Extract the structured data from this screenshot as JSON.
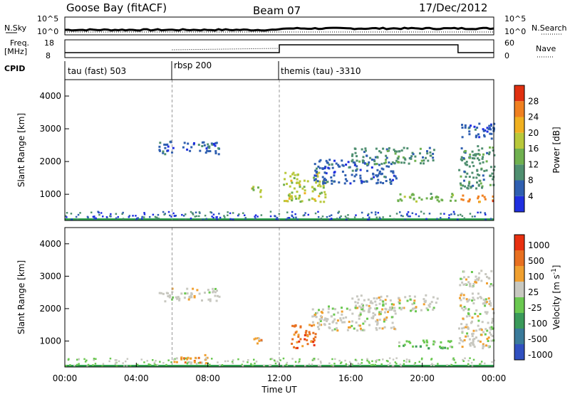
{
  "header": {
    "station": "Goose Bay (fitACF)",
    "beam": "Beam 07",
    "date": "17/Dec/2012"
  },
  "noise_panel": {
    "left_label": "N.Sky",
    "left_ticks": [
      "10^5",
      "10^0"
    ],
    "right_label": "N.Search",
    "right_ticks": [
      "10^5",
      "10^0"
    ]
  },
  "freq_panel": {
    "left_label_top": "Freq.",
    "left_label_unit": "[MHz]",
    "left_ticks": [
      "18",
      "8"
    ],
    "right_label": "Nave",
    "right_ticks": [
      "60",
      "0"
    ]
  },
  "cpid": {
    "label": "CPID",
    "segments": [
      {
        "start": 0,
        "name": "tau (fast) 503"
      },
      {
        "start": 6,
        "name": "rbsp 200"
      },
      {
        "start": 12,
        "name": "themis (tau) -3310"
      }
    ]
  },
  "colors": {
    "power": [
      "#1f2fe0",
      "#2f5fb0",
      "#4f8f70",
      "#6fb04f",
      "#b8c83a",
      "#f0b020",
      "#f08020",
      "#e03010"
    ],
    "velocity": [
      "#3050c0",
      "#3a7a9a",
      "#3a9a5a",
      "#6ac850",
      "#c8c8c0",
      "#f0a030",
      "#e87020",
      "#e83010"
    ],
    "velocity_mid": "#c0c0b8",
    "ground_line": "#30a050"
  },
  "chart_data": [
    {
      "type": "heatmap",
      "title": "Power",
      "xlabel": "Time UT",
      "ylabel": "Slant Range [km]",
      "xlim": [
        0,
        24
      ],
      "ylim": [
        200,
        4500
      ],
      "x_ticks": [
        "00:00",
        "04:00",
        "08:00",
        "12:00",
        "16:00",
        "20:00",
        "00:00"
      ],
      "y_ticks": [
        1000,
        2000,
        3000,
        4000
      ],
      "colorbar": {
        "label": "Power [dB]",
        "ticks": [
          "4",
          "8",
          "12",
          "16",
          "20",
          "24",
          "28"
        ]
      },
      "regions": [
        {
          "t0": 5.2,
          "t1": 8.6,
          "r0": 2250,
          "r1": 2650,
          "level": 1
        },
        {
          "t0": 12.2,
          "t1": 14.6,
          "r0": 800,
          "r1": 1700,
          "level": 4
        },
        {
          "t0": 13.8,
          "t1": 18.5,
          "r0": 1350,
          "r1": 2100,
          "level": 1
        },
        {
          "t0": 16.0,
          "t1": 20.8,
          "r0": 1950,
          "r1": 2450,
          "level": 2
        },
        {
          "t0": 18.5,
          "t1": 21.8,
          "r0": 800,
          "r1": 1050,
          "level": 3
        },
        {
          "t0": 22.0,
          "t1": 24.0,
          "r0": 800,
          "r1": 1000,
          "level": 6
        },
        {
          "t0": 22.0,
          "t1": 24.0,
          "r0": 1200,
          "r1": 2500,
          "level": 2
        },
        {
          "t0": 22.0,
          "t1": 24.0,
          "r0": 2700,
          "r1": 3200,
          "level": 1
        },
        {
          "t0": 10.4,
          "t1": 11.0,
          "r0": 950,
          "r1": 1300,
          "level": 4
        }
      ]
    },
    {
      "type": "heatmap",
      "title": "Velocity",
      "xlabel": "Time UT",
      "ylabel": "Slant Range [km]",
      "xlim": [
        0,
        24
      ],
      "ylim": [
        200,
        4500
      ],
      "x_ticks": [
        "00:00",
        "04:00",
        "08:00",
        "12:00",
        "16:00",
        "20:00",
        "00:00"
      ],
      "y_ticks": [
        1000,
        2000,
        3000,
        4000
      ],
      "colorbar": {
        "label": "Velocity [m s^-1]",
        "ticks": [
          "1000",
          "500",
          "100",
          "25",
          "-25",
          "-100",
          "-500",
          "-1000"
        ]
      },
      "regions": [
        {
          "t0": 5.2,
          "t1": 8.6,
          "r0": 2250,
          "r1": 2650,
          "level": 4
        },
        {
          "t0": 12.6,
          "t1": 14.0,
          "r0": 800,
          "r1": 1600,
          "level": 6
        },
        {
          "t0": 13.8,
          "t1": 18.5,
          "r0": 1350,
          "r1": 2100,
          "level": 4
        },
        {
          "t0": 16.0,
          "t1": 20.8,
          "r0": 1950,
          "r1": 2450,
          "level": 4
        },
        {
          "t0": 18.5,
          "t1": 21.8,
          "r0": 800,
          "r1": 1050,
          "level": 3
        },
        {
          "t0": 22.0,
          "t1": 24.0,
          "r0": 800,
          "r1": 2500,
          "level": 4
        },
        {
          "t0": 22.0,
          "t1": 24.0,
          "r0": 2700,
          "r1": 3200,
          "level": 4
        },
        {
          "t0": 10.4,
          "t1": 11.0,
          "r0": 950,
          "r1": 1300,
          "level": 5
        },
        {
          "t0": 6.0,
          "t1": 8.0,
          "r0": 300,
          "r1": 600,
          "level": 5
        }
      ]
    }
  ]
}
